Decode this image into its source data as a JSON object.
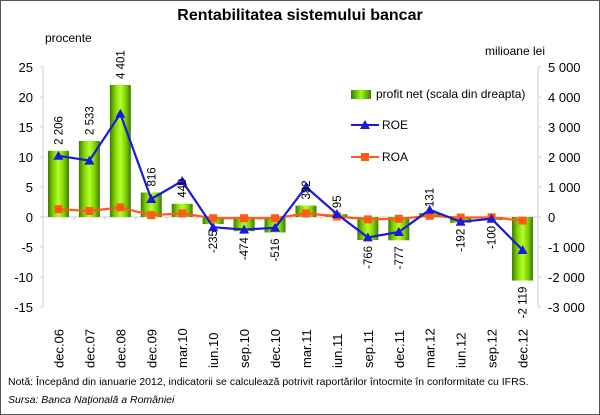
{
  "chart_data": {
    "type": "bar+line",
    "title": "Rentabilitatea sistemului bancar",
    "ylabel_left": "procente",
    "ylabel_right": "milioane lei",
    "categories": [
      "dec.06",
      "dec.07",
      "dec.08",
      "dec.09",
      "mar.10",
      "iun.10",
      "sep.10",
      "dec.10",
      "mar.11",
      "iun.11",
      "sep.11",
      "dec.11",
      "mar.12",
      "iun.12",
      "sep.12",
      "dec.12"
    ],
    "series": [
      {
        "name": "profit net (scala din dreapta)",
        "type": "bar",
        "axis": "right",
        "values": [
          2206,
          2533,
          4401,
          816,
          440,
          -235,
          -474,
          -516,
          382,
          95,
          -766,
          -777,
          131,
          -192,
          -100,
          -2119
        ],
        "labels": [
          "2 206",
          "2 533",
          "4 401",
          "816",
          "440",
          "-235",
          "-474",
          "-516",
          "382",
          "95",
          "-766",
          "-777",
          "131",
          "-192",
          "-100",
          "-2 119"
        ],
        "color": "#7fd400"
      },
      {
        "name": "ROE",
        "type": "line",
        "axis": "left",
        "marker": "triangle",
        "values": [
          10.2,
          9.4,
          17.2,
          3.0,
          6.0,
          -1.7,
          -2.1,
          -1.8,
          5.0,
          0.5,
          -3.4,
          -2.5,
          1.2,
          -0.8,
          -0.3,
          -5.5
        ],
        "color": "#1a1adb"
      },
      {
        "name": "ROA",
        "type": "line",
        "axis": "left",
        "marker": "square",
        "values": [
          1.3,
          1.0,
          1.6,
          0.3,
          0.6,
          -0.2,
          -0.2,
          -0.2,
          0.6,
          0.1,
          -0.4,
          -0.3,
          0.2,
          -0.1,
          -0.05,
          -0.6
        ],
        "color": "#ff5a1a"
      }
    ],
    "ylim_left": [
      -15,
      25
    ],
    "ylim_right": [
      -3000,
      5000
    ],
    "yticks_left": [
      "25",
      "20",
      "15",
      "10",
      "5",
      "0",
      "-5",
      "-10",
      "-15"
    ],
    "yticks_right": [
      "5 000",
      "4 000",
      "3 000",
      "2 000",
      "1 000",
      "0",
      "-1 000",
      "-2 000",
      "-3 000"
    ],
    "legend_position": "right",
    "grid": false
  },
  "footer": {
    "note": "Notă: Începând din ianuarie 2012, indicatorii se calculează potrivit raportărilor întocmite în conformitate cu IFRS.",
    "source": "Sursa: Banca Naţională a României"
  }
}
